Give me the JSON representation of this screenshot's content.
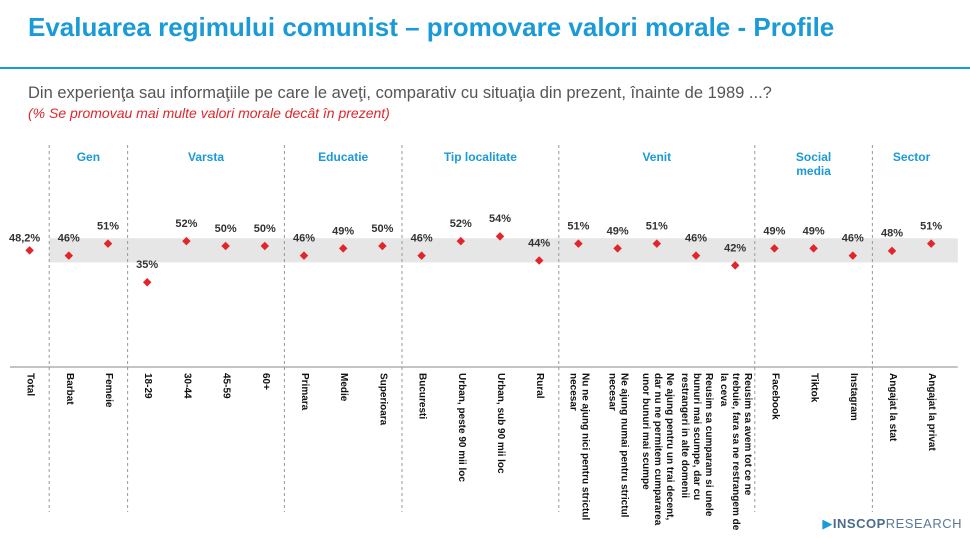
{
  "title": "Evaluarea regimului comunist – promovare valori morale - Profile",
  "question": "Din experienţa sau informaţiile pe care le aveţi, comparativ cu situaţia din prezent, înainte de 1989 ...?",
  "note": "(% Se promovau mai multe valori morale decât în prezent)",
  "logo": {
    "bold": "INSCOP",
    "light": "RESEARCH"
  },
  "chart_data": {
    "type": "dot",
    "color": "#e0262b",
    "band_color": "#e6e6e6",
    "ylim": [
      0,
      100
    ],
    "reference_band": [
      43.2,
      53.2
    ],
    "groups": [
      {
        "label": null,
        "categories": [
          "Total"
        ],
        "values": [
          48.2
        ],
        "value_labels": [
          "48,2%"
        ]
      },
      {
        "label": "Gen",
        "categories": [
          "Barbat",
          "Femeie"
        ],
        "values": [
          46,
          51
        ],
        "value_labels": [
          "46%",
          "51%"
        ]
      },
      {
        "label": "Varsta",
        "categories": [
          "18-29",
          "30-44",
          "45-59",
          "60+"
        ],
        "values": [
          35,
          52,
          50,
          50
        ],
        "value_labels": [
          "35%",
          "52%",
          "50%",
          "50%"
        ]
      },
      {
        "label": "Educatie",
        "categories": [
          "Primara",
          "Medie",
          "Superioara"
        ],
        "values": [
          46,
          49,
          50
        ],
        "value_labels": [
          "46%",
          "49%",
          "50%"
        ]
      },
      {
        "label": "Tip localitate",
        "categories": [
          "Bucuresti",
          "Urban, peste 90 mii loc",
          "Urban, sub 90 mii loc",
          "Rural"
        ],
        "values": [
          46,
          52,
          54,
          44
        ],
        "value_labels": [
          "46%",
          "52%",
          "54%",
          "44%"
        ]
      },
      {
        "label": "Venit",
        "categories": [
          "Nu ne ajung nici pentru strictul necesar",
          "Ne ajung numai pentru strictul necesar",
          "Ne ajung pentru un trai decent, dar nu ne permitem cumpararea unor bunuri mai scumpe",
          "Reusim sa cumparam si unele bunuri mai scumpe, dar cu restrangeri in alte domenii",
          "Reusim sa avem tot ce ne trebuie, fara sa ne restrangem de la ceva"
        ],
        "values": [
          51,
          49,
          51,
          46,
          42
        ],
        "value_labels": [
          "51%",
          "49%",
          "51%",
          "46%",
          "42%"
        ]
      },
      {
        "label": "Social media",
        "categories": [
          "Facebook",
          "Tiktok",
          "Instagram"
        ],
        "values": [
          49,
          49,
          46
        ],
        "value_labels": [
          "49%",
          "49%",
          "46%"
        ]
      },
      {
        "label": "Sector",
        "categories": [
          "Angajat la stat",
          "Angajat la privat"
        ],
        "values": [
          48,
          51
        ],
        "value_labels": [
          "48%",
          "51%"
        ]
      }
    ]
  }
}
